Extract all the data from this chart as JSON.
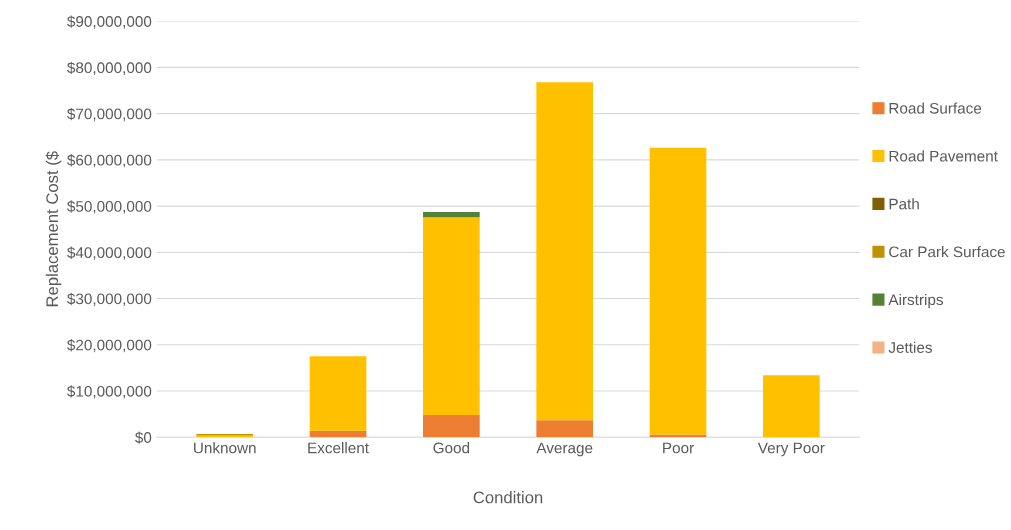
{
  "chart_data": {
    "type": "bar",
    "stacked": true,
    "xlabel": "Condition",
    "ylabel": "Replacement Cost ($",
    "categories": [
      "Unknown",
      "Excellent",
      "Good",
      "Average",
      "Poor",
      "Very Poor"
    ],
    "series": [
      {
        "name": "Road Surface",
        "color": "#ed7d31",
        "values": [
          0,
          1400000,
          4800000,
          3700000,
          600000,
          0
        ]
      },
      {
        "name": "Road Pavement",
        "color": "#ffc000",
        "values": [
          400000,
          16100000,
          42800000,
          73100000,
          62000000,
          13400000
        ]
      },
      {
        "name": "Path",
        "color": "#7f6000",
        "values": [
          0,
          0,
          0,
          0,
          0,
          0
        ]
      },
      {
        "name": "Car Park Surface",
        "color": "#bf9000",
        "values": [
          300000,
          0,
          0,
          0,
          0,
          0
        ]
      },
      {
        "name": "Airstrips",
        "color": "#548235",
        "values": [
          0,
          0,
          1100000,
          0,
          0,
          0
        ]
      },
      {
        "name": "Jetties",
        "color": "#f4b183",
        "values": [
          0,
          0,
          0,
          0,
          0,
          0
        ]
      }
    ],
    "ylim": [
      0,
      90000000
    ],
    "yticks": [
      {
        "value": 0,
        "label": "$0"
      },
      {
        "value": 10000000,
        "label": "$10,000,000"
      },
      {
        "value": 20000000,
        "label": "$20,000,000"
      },
      {
        "value": 30000000,
        "label": "$30,000,000"
      },
      {
        "value": 40000000,
        "label": "$40,000,000"
      },
      {
        "value": 50000000,
        "label": "$50,000,000"
      },
      {
        "value": 60000000,
        "label": "$60,000,000"
      },
      {
        "value": 70000000,
        "label": "$70,000,000"
      },
      {
        "value": 80000000,
        "label": "$80,000,000"
      },
      {
        "value": 90000000,
        "label": "$90,000,000"
      }
    ],
    "grid": "y",
    "legend": "right"
  }
}
